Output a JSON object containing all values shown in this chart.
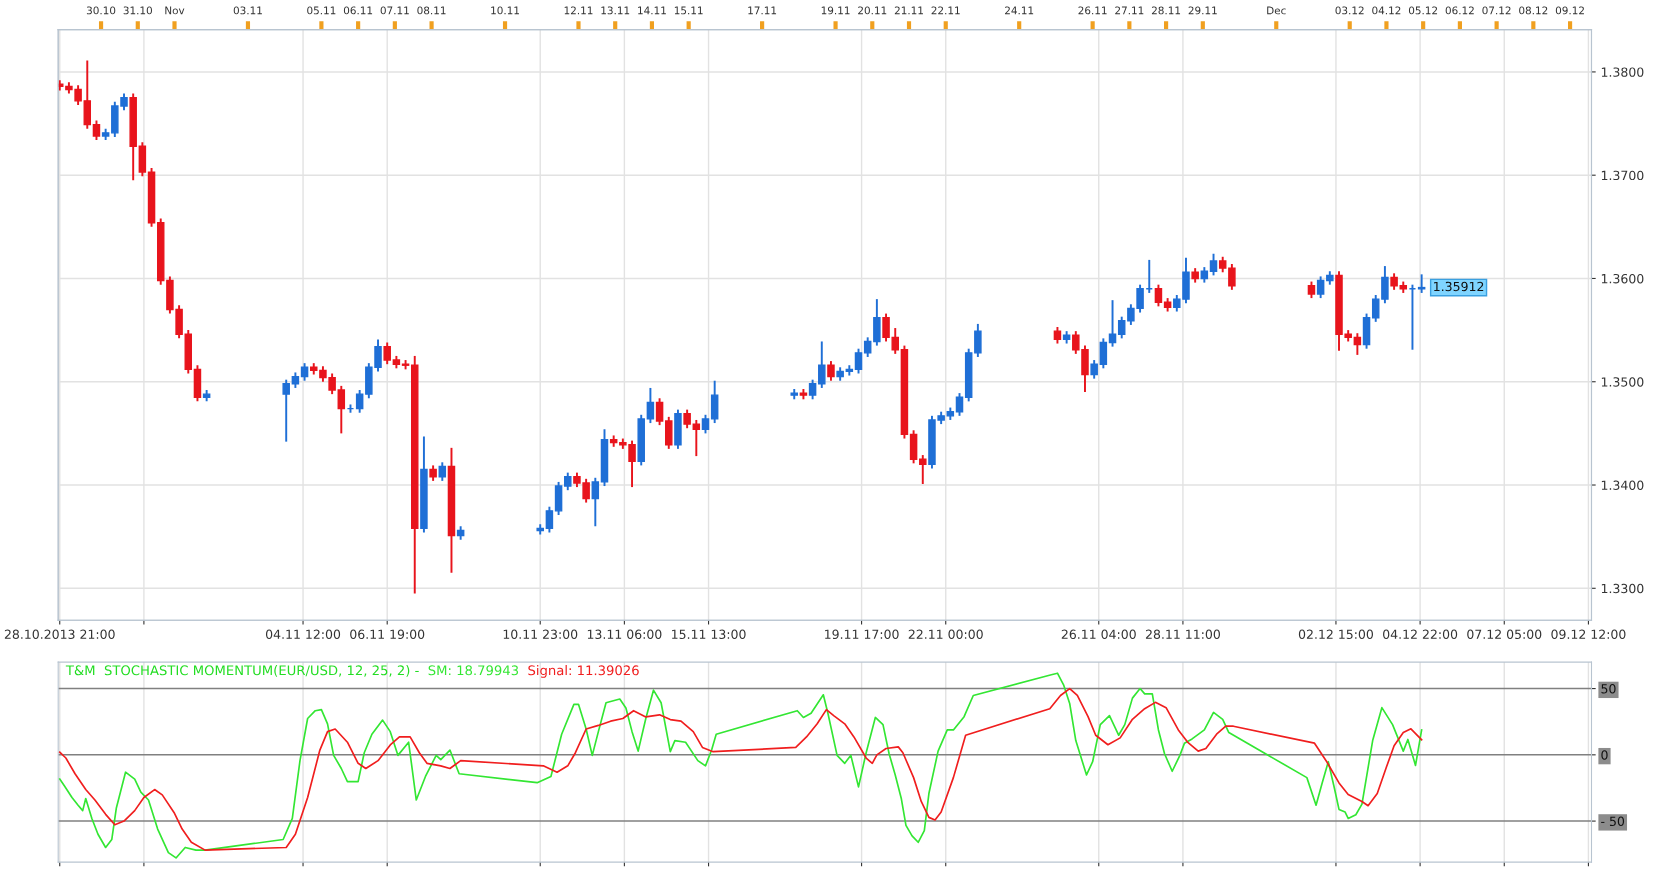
{
  "chart_data": [
    {
      "type": "candlestick",
      "x": [
        "2013-10-28T21:00",
        "2013-10-29T03:00",
        "2013-10-29T09:00",
        "2013-10-29T15:00",
        "2013-10-29T21:00",
        "2013-10-30T03:00",
        "2013-10-30T09:00",
        "2013-10-30T15:00",
        "2013-10-30T21:00",
        "2013-10-31T03:00",
        "2013-10-31T09:00",
        "2013-10-31T15:00",
        "2013-10-31T21:00",
        "2013-11-01T03:00",
        "2013-11-01T09:00",
        "2013-11-01T15:00",
        "2013-11-01T21:00",
        "2013-11-04T01:00",
        "2013-11-04T07:00",
        "2013-11-04T13:00",
        "2013-11-04T19:00",
        "2013-11-05T01:00",
        "2013-11-05T07:00",
        "2013-11-05T13:00",
        "2013-11-05T19:00",
        "2013-11-06T01:00",
        "2013-11-06T07:00",
        "2013-11-06T13:00",
        "2013-11-06T19:00",
        "2013-11-07T01:00",
        "2013-11-07T07:00",
        "2013-11-07T13:00",
        "2013-11-07T19:00",
        "2013-11-08T01:00",
        "2013-11-08T07:00",
        "2013-11-08T13:00",
        "2013-11-08T19:00",
        "2013-11-10T23:00",
        "2013-11-11T05:00",
        "2013-11-11T11:00",
        "2013-11-11T17:00",
        "2013-11-11T23:00",
        "2013-11-12T05:00",
        "2013-11-12T11:00",
        "2013-11-12T17:00",
        "2013-11-12T23:00",
        "2013-11-13T05:00",
        "2013-11-13T11:00",
        "2013-11-13T17:00",
        "2013-11-13T23:00",
        "2013-11-14T05:00",
        "2013-11-14T11:00",
        "2013-11-14T17:00",
        "2013-11-14T23:00",
        "2013-11-15T05:00",
        "2013-11-15T11:00",
        "2013-11-15T17:00",
        "2013-11-17T21:00",
        "2013-11-18T03:00",
        "2013-11-18T09:00",
        "2013-11-18T15:00",
        "2013-11-18T21:00",
        "2013-11-19T03:00",
        "2013-11-19T09:00",
        "2013-11-19T15:00",
        "2013-11-19T21:00",
        "2013-11-20T03:00",
        "2013-11-20T09:00",
        "2013-11-20T15:00",
        "2013-11-20T21:00",
        "2013-11-21T03:00",
        "2013-11-21T09:00",
        "2013-11-21T15:00",
        "2013-11-21T21:00",
        "2013-11-22T03:00",
        "2013-11-22T09:00",
        "2013-11-22T15:00",
        "2013-11-22T21:00",
        "2013-11-25T01:00",
        "2013-11-25T07:00",
        "2013-11-25T13:00",
        "2013-11-25T19:00",
        "2013-11-26T01:00",
        "2013-11-26T07:00",
        "2013-11-26T13:00",
        "2013-11-26T19:00",
        "2013-11-27T01:00",
        "2013-11-27T07:00",
        "2013-11-27T13:00",
        "2013-11-27T19:00",
        "2013-11-28T01:00",
        "2013-11-28T07:00",
        "2013-11-28T13:00",
        "2013-11-28T19:00",
        "2013-11-29T01:00",
        "2013-11-29T07:00",
        "2013-11-29T13:00",
        "2013-11-29T19:00",
        "2013-12-01T23:00",
        "2013-12-02T05:00",
        "2013-12-02T11:00",
        "2013-12-02T17:00",
        "2013-12-02T23:00",
        "2013-12-03T05:00",
        "2013-12-03T11:00",
        "2013-12-03T17:00",
        "2013-12-03T23:00",
        "2013-12-04T05:00",
        "2013-12-04T11:00",
        "2013-12-04T17:00",
        "2013-12-04T23:00"
      ],
      "ohlc": [
        [
          1.3788,
          1.3792,
          1.3782,
          1.3786
        ],
        [
          1.3786,
          1.379,
          1.3779,
          1.3783
        ],
        [
          1.3783,
          1.3787,
          1.3768,
          1.3772
        ],
        [
          1.3772,
          1.3811,
          1.3745,
          1.3749
        ],
        [
          1.3749,
          1.3753,
          1.3734,
          1.3738
        ],
        [
          1.3738,
          1.3745,
          1.3734,
          1.3741
        ],
        [
          1.3741,
          1.3771,
          1.3737,
          1.3767
        ],
        [
          1.3767,
          1.3779,
          1.3763,
          1.3775
        ],
        [
          1.3775,
          1.3779,
          1.3695,
          1.3728
        ],
        [
          1.3728,
          1.3732,
          1.3699,
          1.3703
        ],
        [
          1.3703,
          1.3707,
          1.365,
          1.3654
        ],
        [
          1.3654,
          1.3658,
          1.3594,
          1.3598
        ],
        [
          1.3598,
          1.3602,
          1.3566,
          1.357
        ],
        [
          1.357,
          1.3574,
          1.3542,
          1.3546
        ],
        [
          1.3546,
          1.355,
          1.3508,
          1.3512
        ],
        [
          1.3512,
          1.3516,
          1.3481,
          1.3485
        ],
        [
          1.3485,
          1.3492,
          1.3481,
          1.3488
        ],
        [
          1.3488,
          1.3502,
          1.3442,
          1.3498
        ],
        [
          1.3498,
          1.3509,
          1.3494,
          1.3505
        ],
        [
          1.3505,
          1.3518,
          1.3501,
          1.3514
        ],
        [
          1.3514,
          1.3518,
          1.3507,
          1.3511
        ],
        [
          1.3511,
          1.3515,
          1.35,
          1.3504
        ],
        [
          1.3504,
          1.3508,
          1.3488,
          1.3492
        ],
        [
          1.3492,
          1.3496,
          1.345,
          1.3474
        ],
        [
          1.3474,
          1.3478,
          1.347,
          1.3474
        ],
        [
          1.3474,
          1.3492,
          1.347,
          1.3488
        ],
        [
          1.3488,
          1.3518,
          1.3484,
          1.3514
        ],
        [
          1.3514,
          1.3541,
          1.351,
          1.3534
        ],
        [
          1.3534,
          1.3538,
          1.3517,
          1.3521
        ],
        [
          1.3521,
          1.3525,
          1.3513,
          1.3517
        ],
        [
          1.3517,
          1.3521,
          1.3512,
          1.3516
        ],
        [
          1.3516,
          1.3525,
          1.3295,
          1.3358
        ],
        [
          1.3358,
          1.3447,
          1.3354,
          1.3415
        ],
        [
          1.3415,
          1.3419,
          1.3404,
          1.3408
        ],
        [
          1.3408,
          1.3422,
          1.3404,
          1.3418
        ],
        [
          1.3418,
          1.3436,
          1.3315,
          1.3351
        ],
        [
          1.3351,
          1.336,
          1.3347,
          1.3356
        ],
        [
          1.3356,
          1.3362,
          1.3352,
          1.3358
        ],
        [
          1.3358,
          1.3379,
          1.3354,
          1.3375
        ],
        [
          1.3375,
          1.3403,
          1.3371,
          1.3399
        ],
        [
          1.3399,
          1.3412,
          1.3395,
          1.3408
        ],
        [
          1.3408,
          1.3412,
          1.3398,
          1.3402
        ],
        [
          1.3402,
          1.3406,
          1.3383,
          1.3387
        ],
        [
          1.3387,
          1.3407,
          1.336,
          1.3403
        ],
        [
          1.3403,
          1.3454,
          1.3399,
          1.3444
        ],
        [
          1.3444,
          1.3448,
          1.3437,
          1.3441
        ],
        [
          1.3441,
          1.3445,
          1.3435,
          1.3439
        ],
        [
          1.3439,
          1.3443,
          1.3398,
          1.3423
        ],
        [
          1.3423,
          1.3468,
          1.3419,
          1.3464
        ],
        [
          1.3464,
          1.3494,
          1.346,
          1.348
        ],
        [
          1.348,
          1.3484,
          1.3458,
          1.3462
        ],
        [
          1.3462,
          1.3466,
          1.3435,
          1.3439
        ],
        [
          1.3439,
          1.3473,
          1.3435,
          1.3469
        ],
        [
          1.3469,
          1.3473,
          1.3455,
          1.3459
        ],
        [
          1.3459,
          1.3463,
          1.3428,
          1.3454
        ],
        [
          1.3454,
          1.3468,
          1.345,
          1.3464
        ],
        [
          1.3464,
          1.3501,
          1.346,
          1.3487
        ],
        [
          1.3487,
          1.3493,
          1.3483,
          1.3489
        ],
        [
          1.3489,
          1.3493,
          1.3483,
          1.3487
        ],
        [
          1.3487,
          1.3502,
          1.3483,
          1.3498
        ],
        [
          1.3498,
          1.3539,
          1.3494,
          1.3516
        ],
        [
          1.3516,
          1.352,
          1.3501,
          1.3505
        ],
        [
          1.3505,
          1.3514,
          1.3501,
          1.351
        ],
        [
          1.351,
          1.3516,
          1.3506,
          1.3512
        ],
        [
          1.3512,
          1.3532,
          1.3508,
          1.3528
        ],
        [
          1.3528,
          1.3543,
          1.3524,
          1.3539
        ],
        [
          1.3539,
          1.358,
          1.3535,
          1.3562
        ],
        [
          1.3562,
          1.3566,
          1.3539,
          1.3543
        ],
        [
          1.3543,
          1.3552,
          1.3527,
          1.3531
        ],
        [
          1.3531,
          1.3535,
          1.3445,
          1.3449
        ],
        [
          1.3449,
          1.3453,
          1.3421,
          1.3425
        ],
        [
          1.3425,
          1.3429,
          1.3401,
          1.342
        ],
        [
          1.342,
          1.3467,
          1.3416,
          1.3463
        ],
        [
          1.3463,
          1.3471,
          1.3459,
          1.3467
        ],
        [
          1.3467,
          1.3475,
          1.3463,
          1.3471
        ],
        [
          1.3471,
          1.3489,
          1.3467,
          1.3485
        ],
        [
          1.3485,
          1.3532,
          1.3481,
          1.3528
        ],
        [
          1.3528,
          1.3556,
          1.3524,
          1.3549
        ],
        [
          1.3549,
          1.3553,
          1.3537,
          1.3541
        ],
        [
          1.3541,
          1.3549,
          1.3537,
          1.3545
        ],
        [
          1.3545,
          1.3549,
          1.3527,
          1.3531
        ],
        [
          1.3531,
          1.3535,
          1.349,
          1.3507
        ],
        [
          1.3507,
          1.3521,
          1.3503,
          1.3517
        ],
        [
          1.3517,
          1.3542,
          1.3513,
          1.3538
        ],
        [
          1.3538,
          1.3579,
          1.3534,
          1.3546
        ],
        [
          1.3546,
          1.3563,
          1.3542,
          1.3559
        ],
        [
          1.3559,
          1.3575,
          1.3555,
          1.3571
        ],
        [
          1.3571,
          1.3594,
          1.3567,
          1.359
        ],
        [
          1.359,
          1.3618,
          1.3586,
          1.359
        ],
        [
          1.359,
          1.3594,
          1.3573,
          1.3577
        ],
        [
          1.3577,
          1.3581,
          1.3568,
          1.3572
        ],
        [
          1.3572,
          1.3584,
          1.3568,
          1.358
        ],
        [
          1.358,
          1.362,
          1.3576,
          1.3606
        ],
        [
          1.3606,
          1.361,
          1.3596,
          1.36
        ],
        [
          1.36,
          1.3611,
          1.3596,
          1.3607
        ],
        [
          1.3607,
          1.3624,
          1.3603,
          1.3617
        ],
        [
          1.3617,
          1.3621,
          1.3606,
          1.361
        ],
        [
          1.361,
          1.3614,
          1.3589,
          1.3593
        ],
        [
          1.3593,
          1.3597,
          1.3581,
          1.3585
        ],
        [
          1.3585,
          1.3602,
          1.3581,
          1.3598
        ],
        [
          1.3598,
          1.3607,
          1.3594,
          1.3603
        ],
        [
          1.3603,
          1.3607,
          1.353,
          1.3546
        ],
        [
          1.3546,
          1.355,
          1.3539,
          1.3543
        ],
        [
          1.3543,
          1.3547,
          1.3526,
          1.3536
        ],
        [
          1.3536,
          1.3566,
          1.3532,
          1.3562
        ],
        [
          1.3562,
          1.3584,
          1.3558,
          1.358
        ],
        [
          1.358,
          1.3612,
          1.3576,
          1.3601
        ],
        [
          1.3601,
          1.3605,
          1.3589,
          1.3593
        ],
        [
          1.3593,
          1.3597,
          1.3586,
          1.359
        ],
        [
          1.359,
          1.3594,
          1.3531,
          1.359
        ],
        [
          1.359,
          1.3604,
          1.3586,
          1.35912
        ]
      ],
      "colors": [
        "#e8141c",
        "#e8141c",
        "#e8141c",
        "#e8141c",
        "#e8141c",
        "#1f6fd6",
        "#1f6fd6",
        "#1f6fd6",
        "#e8141c",
        "#e8141c",
        "#e8141c",
        "#e8141c",
        "#e8141c",
        "#e8141c",
        "#e8141c",
        "#e8141c",
        "#1f6fd6",
        "#1f6fd6",
        "#1f6fd6",
        "#1f6fd6",
        "#e8141c",
        "#e8141c",
        "#e8141c",
        "#e8141c",
        "#1f6fd6",
        "#1f6fd6",
        "#1f6fd6",
        "#1f6fd6",
        "#e8141c",
        "#e8141c",
        "#e8141c",
        "#e8141c",
        "#1f6fd6",
        "#e8141c",
        "#1f6fd6",
        "#e8141c",
        "#1f6fd6",
        "#1f6fd6",
        "#1f6fd6",
        "#1f6fd6",
        "#1f6fd6",
        "#e8141c",
        "#e8141c",
        "#1f6fd6",
        "#1f6fd6",
        "#e8141c",
        "#e8141c",
        "#e8141c",
        "#1f6fd6",
        "#1f6fd6",
        "#e8141c",
        "#e8141c",
        "#1f6fd6",
        "#e8141c",
        "#e8141c",
        "#1f6fd6",
        "#1f6fd6",
        "#1f6fd6",
        "#e8141c",
        "#1f6fd6",
        "#1f6fd6",
        "#e8141c",
        "#1f6fd6",
        "#1f6fd6",
        "#1f6fd6",
        "#1f6fd6",
        "#1f6fd6",
        "#e8141c",
        "#e8141c",
        "#e8141c",
        "#e8141c",
        "#e8141c",
        "#1f6fd6",
        "#1f6fd6",
        "#1f6fd6",
        "#1f6fd6",
        "#1f6fd6",
        "#1f6fd6",
        "#e8141c",
        "#1f6fd6",
        "#e8141c",
        "#e8141c",
        "#1f6fd6",
        "#1f6fd6",
        "#1f6fd6",
        "#1f6fd6",
        "#1f6fd6",
        "#1f6fd6",
        "#1f6fd6",
        "#e8141c",
        "#e8141c",
        "#1f6fd6",
        "#1f6fd6",
        "#e8141c",
        "#1f6fd6",
        "#1f6fd6",
        "#e8141c",
        "#e8141c",
        "#e8141c",
        "#1f6fd6",
        "#1f6fd6",
        "#e8141c",
        "#e8141c",
        "#e8141c",
        "#1f6fd6",
        "#1f6fd6",
        "#1f6fd6",
        "#e8141c",
        "#e8141c",
        "#1f6fd6",
        "#1f6fd6"
      ],
      "xlim": [
        "2013-10-28T20:00",
        "2013-12-09T14:00"
      ],
      "xticks": [
        {
          "value": "2013-10-28T21:00",
          "label": "28.10.2013 21:00"
        },
        {
          "value": "2013-10-31T04:00",
          "label": null
        },
        {
          "value": "2013-11-04T12:00",
          "label": "04.11 12:00"
        },
        {
          "value": "2013-11-06T19:00",
          "label": "06.11 19:00"
        },
        {
          "value": "2013-11-10T23:00",
          "label": "10.11 23:00"
        },
        {
          "value": "2013-11-13T06:00",
          "label": "13.11 06:00"
        },
        {
          "value": "2013-11-15T13:00",
          "label": "15.11 13:00"
        },
        {
          "value": "2013-11-19T17:00",
          "label": "19.11 17:00"
        },
        {
          "value": "2013-11-22T00:00",
          "label": "22.11 00:00"
        },
        {
          "value": "2013-11-26T04:00",
          "label": "26.11 04:00"
        },
        {
          "value": "2013-11-28T11:00",
          "label": "28.11 11:00"
        },
        {
          "value": "2013-12-02T15:00",
          "label": "02.12 15:00"
        },
        {
          "value": "2013-12-04T22:00",
          "label": "04.12 22:00"
        },
        {
          "value": "2013-12-07T05:00",
          "label": "07.12 05:00"
        },
        {
          "value": "2013-12-09T12:00",
          "label": "09.12 12:00"
        }
      ],
      "x2lim": [
        "2013-10-28T20:00",
        "2013-12-09T14:00"
      ],
      "x2ticks": [
        {
          "value": "2013-10-30",
          "label": "30.10"
        },
        {
          "value": "2013-10-31",
          "label": "31.10"
        },
        {
          "value": "2013-11-01",
          "label": "Nov"
        },
        {
          "value": "2013-11-03",
          "label": "03.11"
        },
        {
          "value": "2013-11-05",
          "label": "05.11"
        },
        {
          "value": "2013-11-06",
          "label": "06.11"
        },
        {
          "value": "2013-11-07",
          "label": "07.11"
        },
        {
          "value": "2013-11-08",
          "label": "08.11"
        },
        {
          "value": "2013-11-10",
          "label": "10.11"
        },
        {
          "value": "2013-11-12",
          "label": "12.11"
        },
        {
          "value": "2013-11-13",
          "label": "13.11"
        },
        {
          "value": "2013-11-14",
          "label": "14.11"
        },
        {
          "value": "2013-11-15",
          "label": "15.11"
        },
        {
          "value": "2013-11-17",
          "label": "17.11"
        },
        {
          "value": "2013-11-19",
          "label": "19.11"
        },
        {
          "value": "2013-11-20",
          "label": "20.11"
        },
        {
          "value": "2013-11-21",
          "label": "21.11"
        },
        {
          "value": "2013-11-22",
          "label": "22.11"
        },
        {
          "value": "2013-11-24",
          "label": "24.11"
        },
        {
          "value": "2013-11-26",
          "label": "26.11"
        },
        {
          "value": "2013-11-27",
          "label": "27.11"
        },
        {
          "value": "2013-11-28",
          "label": "28.11"
        },
        {
          "value": "2013-11-29",
          "label": "29.11"
        },
        {
          "value": "2013-12-01",
          "label": "Dec"
        },
        {
          "value": "2013-12-03",
          "label": "03.12"
        },
        {
          "value": "2013-12-04",
          "label": "04.12"
        },
        {
          "value": "2013-12-05",
          "label": "05.12"
        },
        {
          "value": "2013-12-06",
          "label": "06.12"
        },
        {
          "value": "2013-12-07",
          "label": "07.12"
        },
        {
          "value": "2013-12-08",
          "label": "08.12"
        },
        {
          "value": "2013-12-09",
          "label": "09.12"
        }
      ],
      "ylim": [
        1.3269,
        1.3841
      ],
      "yticks": [
        {
          "value": 1.33,
          "label": "1.3300"
        },
        {
          "value": 1.34,
          "label": "1.3400"
        },
        {
          "value": 1.35,
          "label": "1.3500"
        },
        {
          "value": 1.36,
          "label": "1.3600"
        },
        {
          "value": 1.37,
          "label": "1.3700"
        },
        {
          "value": 1.38,
          "label": "1.3800"
        }
      ],
      "grid": true,
      "annotations": [
        {
          "text": "1.35912",
          "x": "2013-12-04T23:00",
          "y": 1.35912
        }
      ]
    },
    {
      "type": "line",
      "title": "T&M  STOCHASTIC MOMENTUM(EUR/USD, 12, 25, 2) -",
      "series": [
        {
          "name": "SM: 18.79943",
          "color": "#33e633",
          "x": [
            "2013-10-28T21:00",
            "2013-10-29T00:00",
            "2013-10-29T05:00",
            "2013-10-29T09:00",
            "2013-10-29T12:00",
            "2013-10-29T14:00",
            "2013-10-29T18:00",
            "2013-10-29T22:00",
            "2013-10-30T03:00",
            "2013-10-30T07:00",
            "2013-10-30T10:00",
            "2013-10-30T16:00",
            "2013-10-30T22:00",
            "2013-10-31T02:00",
            "2013-10-31T07:00",
            "2013-10-31T13:00",
            "2013-10-31T20:00",
            "2013-11-01T01:00",
            "2013-11-01T07:00",
            "2013-11-01T14:00",
            "2013-11-01T20:00",
            "2013-11-03T23:00",
            "2013-11-04T05:00",
            "2013-11-04T10:00",
            "2013-11-04T15:00",
            "2013-11-04T20:00",
            "2013-11-05T00:00",
            "2013-11-05T04:00",
            "2013-11-05T08:00",
            "2013-11-05T13:00",
            "2013-11-05T17:00",
            "2013-11-06T00:00",
            "2013-11-06T04:00",
            "2013-11-06T09:00",
            "2013-11-06T16:00",
            "2013-11-06T21:00",
            "2013-11-07T02:00",
            "2013-11-07T09:00",
            "2013-11-07T14:00",
            "2013-11-07T20:00",
            "2013-11-08T03:00",
            "2013-11-08T06:00",
            "2013-11-08T12:00",
            "2013-11-08T18:00",
            "2013-11-10T21:00",
            "2013-11-11T06:00",
            "2013-11-11T13:00",
            "2013-11-11T21:00",
            "2013-11-12T00:00",
            "2013-11-12T05:00",
            "2013-11-12T09:00",
            "2013-11-12T13:00",
            "2013-11-12T18:00",
            "2013-11-13T03:00",
            "2013-11-13T07:00",
            "2013-11-13T11:00",
            "2013-11-13T15:00",
            "2013-11-13T20:00",
            "2013-11-14T01:00",
            "2013-11-14T06:00",
            "2013-11-14T12:00",
            "2013-11-14T15:00",
            "2013-11-14T22:00",
            "2013-11-15T06:00",
            "2013-11-15T11:00",
            "2013-11-15T15:00",
            "2013-11-15T18:00",
            "2013-11-17T23:00",
            "2013-11-18T03:00",
            "2013-11-18T08:00",
            "2013-11-18T16:00",
            "2013-11-18T19:00",
            "2013-11-19T01:00",
            "2013-11-19T06:00",
            "2013-11-19T10:00",
            "2013-11-19T15:00",
            "2013-11-19T20:00",
            "2013-11-20T02:00",
            "2013-11-20T07:00",
            "2013-11-20T11:00",
            "2013-11-20T15:00",
            "2013-11-20T19:00",
            "2013-11-20T22:00",
            "2013-11-21T02:00",
            "2013-11-21T06:00",
            "2013-11-21T10:00",
            "2013-11-21T13:00",
            "2013-11-21T19:00",
            "2013-11-22T01:00",
            "2013-11-22T05:00",
            "2013-11-22T12:00",
            "2013-11-22T18:00",
            "2013-11-24T21:00",
            "2013-11-25T01:00",
            "2013-11-25T05:00",
            "2013-11-25T09:00",
            "2013-11-25T13:00",
            "2013-11-25T20:00",
            "2013-11-26T00:00",
            "2013-11-26T05:00",
            "2013-11-26T11:00",
            "2013-11-26T17:00",
            "2013-11-26T21:00",
            "2013-11-27T02:00",
            "2013-11-27T07:00",
            "2013-11-27T10:00",
            "2013-11-27T15:00",
            "2013-11-27T19:00",
            "2013-11-27T23:00",
            "2013-11-28T04:00",
            "2013-11-28T09:00",
            "2013-11-28T12:00",
            "2013-11-28T17:00",
            "2013-11-29T01:00",
            "2013-11-29T07:00",
            "2013-11-29T13:00",
            "2013-11-29T17:00",
            "2013-12-01T20:00",
            "2013-12-02T02:00",
            "2013-12-02T06:00",
            "2013-12-02T10:00",
            "2013-12-02T14:00",
            "2013-12-02T17:00",
            "2013-12-02T21:00",
            "2013-12-02T23:00",
            "2013-12-03T04:00",
            "2013-12-03T08:00",
            "2013-12-03T15:00",
            "2013-12-03T21:00",
            "2013-12-04T04:00",
            "2013-12-04T11:00",
            "2013-12-04T14:00",
            "2013-12-04T19:00",
            "2013-12-04T23:00"
          ],
          "values": [
            -18.3,
            -23.4,
            -32.2,
            -38.1,
            -42.1,
            -33.0,
            -48.0,
            -59.9,
            -69.9,
            -63.9,
            -40.1,
            -13.1,
            -18.3,
            -28.2,
            -34.1,
            -56.0,
            -73.8,
            -77.8,
            -69.9,
            -71.9,
            -71.9,
            -63.9,
            -48.0,
            -4.4,
            27.4,
            33.3,
            34.1,
            23.4,
            -0.4,
            -10.3,
            -20.2,
            -20.2,
            1.6,
            15.5,
            26.2,
            17.5,
            -0.4,
            9.5,
            -34.1,
            -16.3,
            -0.4,
            -3.6,
            3.6,
            -14.3,
            -21.0,
            -16.3,
            15.5,
            38.1,
            38.1,
            19.5,
            -0.4,
            17.5,
            39.3,
            42.1,
            35.3,
            17.5,
            2.8,
            27.4,
            48.8,
            39.3,
            2.4,
            10.7,
            9.5,
            -4.4,
            -8.3,
            3.6,
            15.5,
            33.3,
            28.2,
            31.4,
            45.3,
            31.4,
            -0.4,
            -6.4,
            -0.4,
            -24.2,
            1.6,
            28.2,
            22.8,
            0.8,
            -15.2,
            -33.2,
            -53.2,
            -61.2,
            -66.0,
            -57.2,
            -29.2,
            2.8,
            18.8,
            18.8,
            28.8,
            44.8,
            60.4,
            61.6,
            52.8,
            38.8,
            10.8,
            -15.2,
            -5.2,
            22.8,
            29.6,
            14.8,
            22.8,
            42.8,
            50.0,
            46.0,
            46.0,
            18.8,
            0.8,
            -12.4,
            -0.4,
            8.8,
            12.0,
            18.8,
            32.0,
            26.8,
            16.8,
            -17.2,
            -38.0,
            -21.2,
            -5.2,
            -25.2,
            -41.2,
            -43.2,
            -48.0,
            -45.2,
            -37.2,
            10.8,
            35.6,
            22.8,
            2.8,
            11.6,
            -8.0,
            18.8
          ]
        },
        {
          "name": "Signal: 11.39026",
          "color": "#f01e1e",
          "x": [
            "2013-10-28T21:00",
            "2013-10-29T01:00",
            "2013-10-29T07:00",
            "2013-10-29T14:00",
            "2013-10-29T20:00",
            "2013-10-30T03:00",
            "2013-10-30T09:00",
            "2013-10-30T15:00",
            "2013-10-30T22:00",
            "2013-10-31T04:00",
            "2013-10-31T11:00",
            "2013-10-31T16:00",
            "2013-11-01T00:00",
            "2013-11-01T05:00",
            "2013-11-01T11:00",
            "2013-11-01T20:00",
            "2013-11-04T01:00",
            "2013-11-04T07:00",
            "2013-11-04T15:00",
            "2013-11-04T23:00",
            "2013-11-05T04:00",
            "2013-11-05T09:00",
            "2013-11-05T17:00",
            "2013-11-06T00:00",
            "2013-11-06T05:00",
            "2013-11-06T13:00",
            "2013-11-06T21:00",
            "2013-11-07T03:00",
            "2013-11-07T10:00",
            "2013-11-07T16:00",
            "2013-11-07T21:00",
            "2013-11-08T06:00",
            "2013-11-08T12:00",
            "2013-11-08T19:00",
            "2013-11-11T01:00",
            "2013-11-11T10:00",
            "2013-11-11T17:00",
            "2013-11-11T22:00",
            "2013-11-12T05:00",
            "2013-11-12T13:00",
            "2013-11-12T21:00",
            "2013-11-13T05:00",
            "2013-11-13T12:00",
            "2013-11-13T20:00",
            "2013-11-14T05:00",
            "2013-11-14T12:00",
            "2013-11-14T19:00",
            "2013-11-15T03:00",
            "2013-11-15T09:00",
            "2013-11-15T16:00",
            "2013-11-17T22:00",
            "2013-11-18T05:00",
            "2013-11-18T12:00",
            "2013-11-18T18:00",
            "2013-11-18T23:00",
            "2013-11-19T06:00",
            "2013-11-19T12:00",
            "2013-11-19T20:00",
            "2013-11-20T00:00",
            "2013-11-20T03:00",
            "2013-11-20T09:00",
            "2013-11-20T17:00",
            "2013-11-20T20:00",
            "2013-11-21T03:00",
            "2013-11-21T08:00",
            "2013-11-21T13:00",
            "2013-11-21T17:00",
            "2013-11-21T21:00",
            "2013-11-22T05:00",
            "2013-11-22T13:00",
            "2013-11-24T20:00",
            "2013-11-25T03:00",
            "2013-11-25T09:00",
            "2013-11-25T14:00",
            "2013-11-25T21:00",
            "2013-11-26T02:00",
            "2013-11-26T10:00",
            "2013-11-26T18:00",
            "2013-11-27T02:00",
            "2013-11-27T10:00",
            "2013-11-27T17:00",
            "2013-11-28T00:00",
            "2013-11-28T08:00",
            "2013-11-28T14:00",
            "2013-11-28T21:00",
            "2013-11-29T02:00",
            "2013-11-29T09:00",
            "2013-11-29T15:00",
            "2013-11-29T20:00",
            "2013-12-02T01:00",
            "2013-12-02T09:00",
            "2013-12-02T17:00",
            "2013-12-02T23:00",
            "2013-12-03T08:00",
            "2013-12-03T12:00",
            "2013-12-03T18:00",
            "2013-12-04T00:00",
            "2013-12-04T05:00",
            "2013-12-04T11:00",
            "2013-12-04T16:00",
            "2013-12-04T23:00"
          ],
          "values": [
            2.0,
            -2.4,
            -14.3,
            -26.2,
            -34.1,
            -44.9,
            -52.8,
            -50.0,
            -42.1,
            -32.2,
            -26.2,
            -30.2,
            -44.1,
            -56.0,
            -65.9,
            -71.9,
            -69.9,
            -59.9,
            -32.2,
            3.6,
            17.5,
            19.5,
            9.5,
            -6.4,
            -10.3,
            -4.4,
            7.5,
            13.5,
            13.5,
            1.6,
            -6.4,
            -8.3,
            -10.3,
            -4.4,
            -8.3,
            -13.1,
            -8.3,
            1.6,
            19.5,
            22.2,
            25.4,
            27.4,
            33.3,
            28.6,
            30.2,
            26.6,
            25.4,
            17.5,
            5.6,
            2.4,
            5.6,
            13.5,
            23.4,
            34.1,
            29.4,
            23.4,
            13.5,
            -2.4,
            -6.4,
            0.0,
            4.8,
            6.0,
            1.6,
            -17.2,
            -35.2,
            -47.2,
            -49.2,
            -43.2,
            -17.2,
            14.8,
            34.8,
            44.8,
            50.0,
            44.8,
            28.8,
            14.8,
            7.6,
            12.8,
            26.8,
            34.8,
            39.6,
            35.6,
            18.8,
            9.6,
            2.8,
            4.8,
            15.6,
            21.6,
            21.6,
            8.8,
            -5.2,
            -21.2,
            -30.0,
            -35.2,
            -38.4,
            -29.2,
            -9.2,
            6.8,
            16.8,
            19.6,
            11.4
          ]
        }
      ],
      "xlim": [
        "2013-10-28T20:00",
        "2013-12-09T14:00"
      ],
      "xticks": [
        {
          "value": "2013-10-28T21:00",
          "label": null
        },
        {
          "value": "2013-10-31T04:00",
          "label": null
        },
        {
          "value": "2013-11-04T12:00",
          "label": null
        },
        {
          "value": "2013-11-06T19:00",
          "label": null
        },
        {
          "value": "2013-11-10T23:00",
          "label": null
        },
        {
          "value": "2013-11-13T06:00",
          "label": null
        },
        {
          "value": "2013-11-15T13:00",
          "label": null
        },
        {
          "value": "2013-11-19T17:00",
          "label": null
        },
        {
          "value": "2013-11-22T00:00",
          "label": null
        },
        {
          "value": "2013-11-26T04:00",
          "label": null
        },
        {
          "value": "2013-11-28T11:00",
          "label": null
        },
        {
          "value": "2013-12-02T15:00",
          "label": null
        },
        {
          "value": "2013-12-04T22:00",
          "label": null
        },
        {
          "value": "2013-12-07T05:00",
          "label": null
        },
        {
          "value": "2013-12-09T12:00",
          "label": null
        }
      ],
      "tick_labels": "y",
      "ylim": [
        -81,
        70
      ],
      "yticks": [
        {
          "value": -50,
          "label": "- 50"
        },
        0,
        50
      ],
      "grid": true
    }
  ]
}
